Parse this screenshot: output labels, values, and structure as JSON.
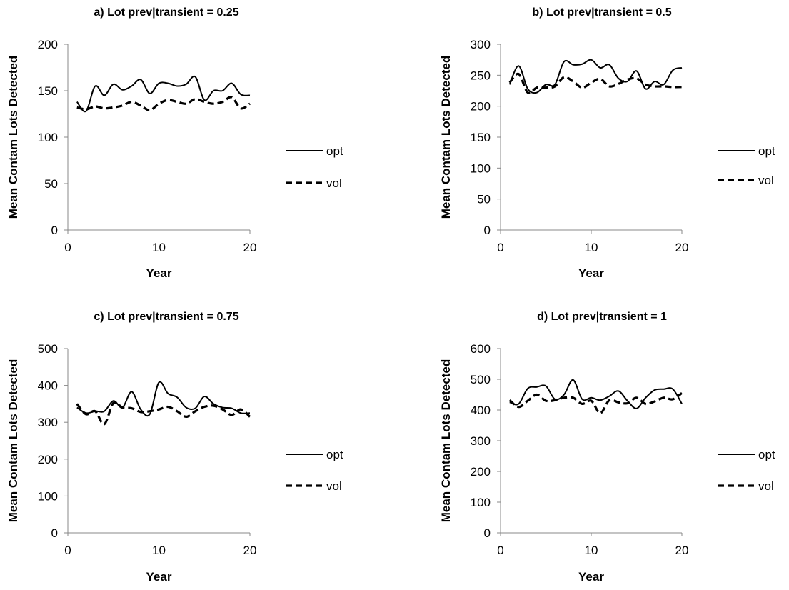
{
  "chart_data": [
    {
      "type": "line",
      "title": "a) Lot prev|transient = 0.25",
      "xlabel": "Year",
      "ylabel": "Mean Contam Lots Detected",
      "xlim": [
        0,
        20
      ],
      "ylim": [
        0,
        200
      ],
      "xticks": [
        0,
        10,
        20
      ],
      "yticks": [
        0,
        50,
        100,
        150,
        200
      ],
      "grid": false,
      "legend": "right",
      "x": [
        1,
        2,
        3,
        4,
        5,
        6,
        7,
        8,
        9,
        10,
        11,
        12,
        13,
        14,
        15,
        16,
        17,
        18,
        19,
        20
      ],
      "series": [
        {
          "name": "opt",
          "style": "solid",
          "values": [
            138,
            128,
            155,
            145,
            157,
            151,
            155,
            162,
            147,
            158,
            158,
            155,
            157,
            165,
            140,
            150,
            150,
            158,
            146,
            145
          ]
        },
        {
          "name": "vol",
          "style": "dashed",
          "values": [
            132,
            130,
            133,
            131,
            132,
            134,
            138,
            134,
            129,
            136,
            140,
            138,
            136,
            141,
            138,
            136,
            138,
            143,
            131,
            136
          ]
        }
      ]
    },
    {
      "type": "line",
      "title": "b) Lot prev|transient = 0.5",
      "xlabel": "Year",
      "ylabel": "Mean Contam Lots Detected",
      "xlim": [
        0,
        20
      ],
      "ylim": [
        0,
        300
      ],
      "xticks": [
        0,
        10,
        20
      ],
      "yticks": [
        0,
        50,
        100,
        150,
        200,
        250,
        300
      ],
      "grid": false,
      "legend": "right",
      "x": [
        1,
        2,
        3,
        4,
        5,
        6,
        7,
        8,
        9,
        10,
        11,
        12,
        13,
        14,
        15,
        16,
        17,
        18,
        19,
        20
      ],
      "series": [
        {
          "name": "opt",
          "style": "solid",
          "values": [
            235,
            265,
            228,
            222,
            235,
            235,
            272,
            267,
            268,
            275,
            262,
            267,
            245,
            240,
            257,
            228,
            240,
            235,
            258,
            262
          ]
        },
        {
          "name": "vol",
          "style": "dashed",
          "values": [
            238,
            252,
            222,
            230,
            230,
            232,
            247,
            240,
            230,
            238,
            244,
            232,
            236,
            243,
            245,
            235,
            232,
            232,
            231,
            231
          ]
        }
      ]
    },
    {
      "type": "line",
      "title": "c) Lot prev|transient = 0.75",
      "xlabel": "Year",
      "ylabel": "Mean Contam Lots Detected",
      "xlim": [
        0,
        20
      ],
      "ylim": [
        0,
        500
      ],
      "xticks": [
        0,
        10,
        20
      ],
      "yticks": [
        0,
        100,
        200,
        300,
        400,
        500
      ],
      "grid": false,
      "legend": "right",
      "x": [
        1,
        2,
        3,
        4,
        5,
        6,
        7,
        8,
        9,
        10,
        11,
        12,
        13,
        14,
        15,
        16,
        17,
        18,
        19,
        20
      ],
      "series": [
        {
          "name": "opt",
          "style": "solid",
          "values": [
            340,
            325,
            330,
            330,
            358,
            340,
            383,
            335,
            322,
            408,
            378,
            368,
            340,
            338,
            370,
            350,
            340,
            338,
            325,
            325
          ]
        },
        {
          "name": "vol",
          "style": "dashed",
          "values": [
            350,
            322,
            330,
            295,
            352,
            340,
            338,
            328,
            330,
            335,
            342,
            330,
            315,
            330,
            342,
            345,
            335,
            320,
            335,
            315
          ]
        }
      ]
    },
    {
      "type": "line",
      "title": "d) Lot prev|transient = 1",
      "xlabel": "Year",
      "ylabel": "Mean Contam Lots Detected",
      "xlim": [
        0,
        20
      ],
      "ylim": [
        0,
        600
      ],
      "xticks": [
        0,
        10,
        20
      ],
      "yticks": [
        0,
        100,
        200,
        300,
        400,
        500,
        600
      ],
      "grid": false,
      "legend": "right",
      "x": [
        1,
        2,
        3,
        4,
        5,
        6,
        7,
        8,
        9,
        10,
        11,
        12,
        13,
        14,
        15,
        16,
        17,
        18,
        19,
        20
      ],
      "series": [
        {
          "name": "opt",
          "style": "solid",
          "values": [
            425,
            420,
            470,
            475,
            478,
            435,
            450,
            498,
            435,
            440,
            432,
            445,
            462,
            430,
            405,
            440,
            465,
            468,
            468,
            420
          ]
        },
        {
          "name": "vol",
          "style": "dashed",
          "values": [
            432,
            410,
            430,
            450,
            430,
            432,
            440,
            440,
            420,
            430,
            390,
            432,
            425,
            422,
            440,
            420,
            428,
            440,
            435,
            455
          ]
        }
      ]
    }
  ]
}
